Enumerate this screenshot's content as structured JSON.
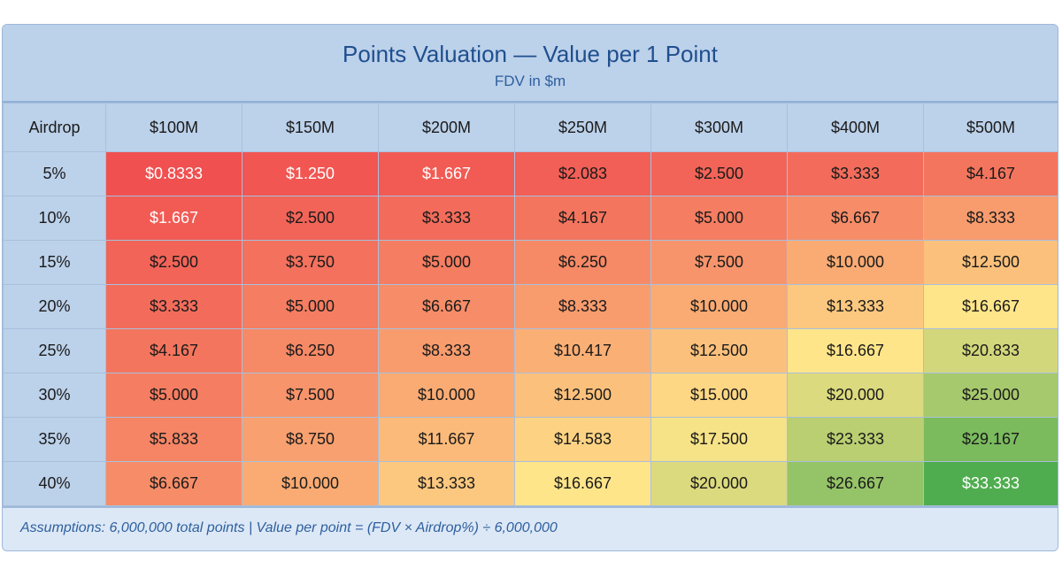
{
  "chart_data": {
    "type": "table",
    "title": "Points Valuation — Value per 1 Point",
    "subtitle": "FDV in $m",
    "corner_label": "Airdrop",
    "columns": [
      "$100M",
      "$150M",
      "$200M",
      "$250M",
      "$300M",
      "$400M",
      "$500M"
    ],
    "rows": [
      {
        "label": "5%",
        "cells": [
          "$0.8333",
          "$1.250",
          "$1.667",
          "$2.083",
          "$2.500",
          "$3.333",
          "$4.167"
        ]
      },
      {
        "label": "10%",
        "cells": [
          "$1.667",
          "$2.500",
          "$3.333",
          "$4.167",
          "$5.000",
          "$6.667",
          "$8.333"
        ]
      },
      {
        "label": "15%",
        "cells": [
          "$2.500",
          "$3.750",
          "$5.000",
          "$6.250",
          "$7.500",
          "$10.000",
          "$12.500"
        ]
      },
      {
        "label": "20%",
        "cells": [
          "$3.333",
          "$5.000",
          "$6.667",
          "$8.333",
          "$10.000",
          "$13.333",
          "$16.667"
        ]
      },
      {
        "label": "25%",
        "cells": [
          "$4.167",
          "$6.250",
          "$8.333",
          "$10.417",
          "$12.500",
          "$16.667",
          "$20.833"
        ]
      },
      {
        "label": "30%",
        "cells": [
          "$5.000",
          "$7.500",
          "$10.000",
          "$12.500",
          "$15.000",
          "$20.000",
          "$25.000"
        ]
      },
      {
        "label": "35%",
        "cells": [
          "$5.833",
          "$8.750",
          "$11.667",
          "$14.583",
          "$17.500",
          "$23.333",
          "$29.167"
        ]
      },
      {
        "label": "40%",
        "cells": [
          "$6.667",
          "$10.000",
          "$13.333",
          "$16.667",
          "$20.000",
          "$26.667",
          "$33.333"
        ]
      }
    ],
    "color_scale": {
      "low": "#f05050",
      "mid": "#ffe58a",
      "high": "#4fad4f"
    },
    "footer": "Assumptions:  6,000,000 total points  |  Value per point = (FDV × Airdrop%) ÷ 6,000,000"
  }
}
